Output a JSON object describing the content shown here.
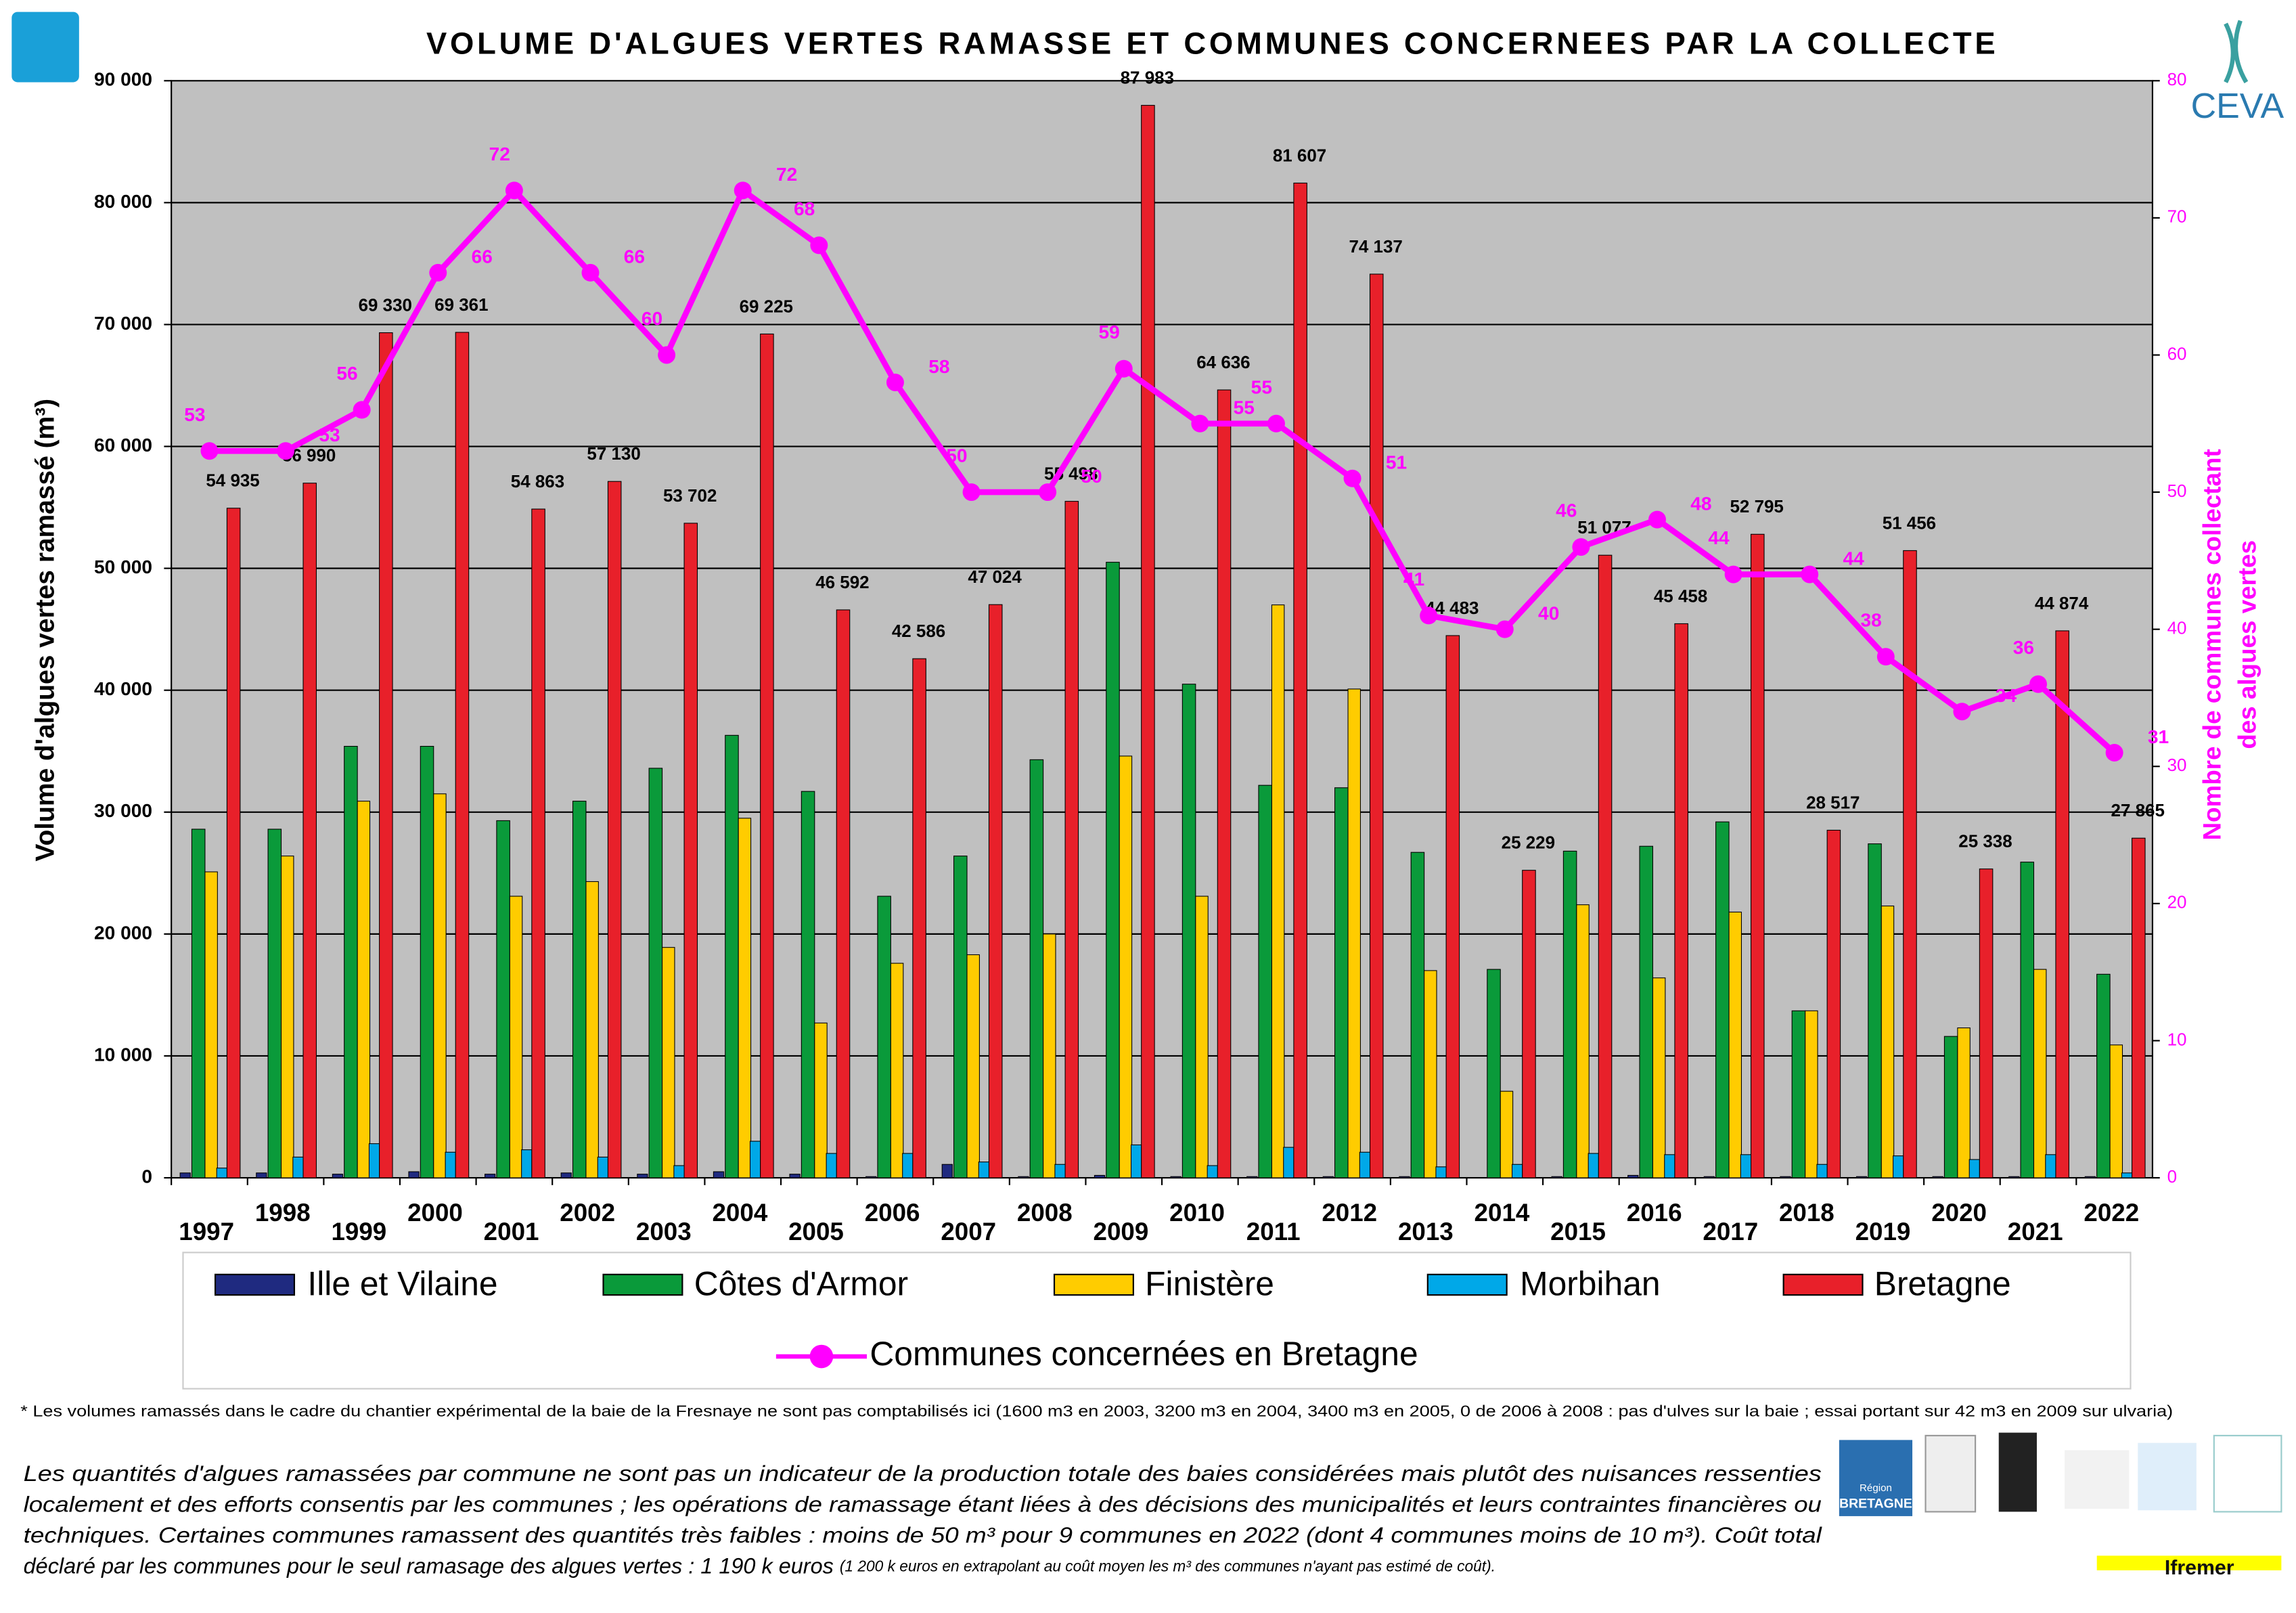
{
  "chart_data": {
    "type": "bar",
    "title": "VOLUME  D'ALGUES VERTES RAMASSE ET COMMUNES CONCERNEES PAR LA COLLECTE",
    "ylabel": "Volume d'algues vertes ramassé (m³)",
    "y2label": [
      "Nombre de communes collectant",
      "des algues vertes"
    ],
    "categories": [
      "1997",
      "1998",
      "1999",
      "2000",
      "2001",
      "2002",
      "2003",
      "2004",
      "2005",
      "2006",
      "2007",
      "2008",
      "2009",
      "2010",
      "2011",
      "2012",
      "2013",
      "2014",
      "2015",
      "2016",
      "2017",
      "2018",
      "2019",
      "2020",
      "2021",
      "2022"
    ],
    "ylim": [
      0,
      90000
    ],
    "yticks": [
      0,
      {
        "value": 10000,
        "label": "10 000"
      },
      {
        "value": 20000,
        "label": "20 000"
      },
      {
        "value": 30000,
        "label": "30 000"
      },
      {
        "value": 40000,
        "label": "40 000"
      },
      {
        "value": 50000,
        "label": "50 000"
      },
      {
        "value": 60000,
        "label": "60 000"
      },
      {
        "value": 70000,
        "label": "70 000"
      },
      {
        "value": 80000,
        "label": "80 000"
      },
      {
        "value": 90000,
        "label": "90 000"
      }
    ],
    "y2lim": [
      0,
      80
    ],
    "y2ticks": [
      0,
      10,
      20,
      30,
      40,
      50,
      60,
      70,
      80
    ],
    "grid": true,
    "series": [
      {
        "name": "Ille et Vilaine",
        "color": "#1f2a80",
        "values": [
          400,
          400,
          300,
          500,
          300,
          400,
          300,
          500,
          300,
          100,
          1100,
          100,
          200,
          100,
          100,
          100,
          100,
          0,
          100,
          200,
          100,
          100,
          100,
          100,
          100,
          100
        ]
      },
      {
        "name": "Côtes d'Armor",
        "color": "#0a9a3a",
        "values": [
          28600,
          28600,
          35400,
          35400,
          29300,
          30900,
          33600,
          36300,
          31700,
          23100,
          26400,
          34300,
          50500,
          40500,
          32200,
          32000,
          26700,
          17100,
          26800,
          27200,
          29200,
          13700,
          27400,
          11600,
          25900,
          16700
        ]
      },
      {
        "name": "Finistère",
        "color": "#ffcc00",
        "values": [
          25100,
          26400,
          30900,
          31500,
          23100,
          24300,
          18900,
          29500,
          12700,
          17600,
          18300,
          20000,
          34600,
          23100,
          47000,
          40100,
          17000,
          7100,
          22400,
          16400,
          21800,
          13700,
          22300,
          12300,
          17100,
          10900
        ]
      },
      {
        "name": "Morbihan",
        "color": "#00a8e8",
        "values": [
          800,
          1700,
          2800,
          2100,
          2300,
          1700,
          1000,
          3000,
          2000,
          2000,
          1300,
          1100,
          2700,
          1000,
          2500,
          2100,
          900,
          1100,
          2000,
          1900,
          1900,
          1100,
          1800,
          1500,
          1900,
          400
        ]
      },
      {
        "name": "Bretagne",
        "color": "#e8202a",
        "values": [
          54935,
          56990,
          69330,
          69361,
          54863,
          57130,
          53702,
          69225,
          46592,
          42586,
          47024,
          55498,
          87983,
          64636,
          81607,
          74137,
          44483,
          25229,
          51077,
          45458,
          52795,
          28517,
          51456,
          25338,
          44874,
          27865
        ],
        "value_labels": [
          "54 935",
          "56 990",
          "69 330",
          "69 361",
          "54 863",
          "57 130",
          "53 702",
          "69 225",
          "46 592",
          "42 586",
          "47 024",
          "55 498",
          "87 983",
          "64 636",
          "81 607",
          "74 137",
          "44 483",
          "25 229",
          "51 077",
          "45 458",
          "52 795",
          "28 517",
          "51 456",
          "25 338",
          "44 874",
          "27 865"
        ]
      },
      {
        "name": "Communes concernées en Bretagne",
        "type": "line",
        "axis": "y2",
        "color": "#ff00ff",
        "values": [
          53,
          53,
          56,
          66,
          72,
          66,
          60,
          72,
          68,
          58,
          50,
          50,
          59,
          55,
          55,
          51,
          41,
          40,
          46,
          48,
          44,
          44,
          38,
          34,
          36,
          31
        ]
      }
    ]
  },
  "notes": {
    "footnote": "* Les volumes ramassés dans le cadre du chantier expérimental de la baie de la Fresnaye ne sont pas comptabilisés ici (1600 m3 en 2003, 3200 m3 en 2004, 3400 m3 en 2005, 0 de 2006 à 2008 : pas d'ulves sur la baie ; essai portant sur 42 m3 en 2009 sur ulvaria)",
    "paragraph": [
      "Les quantités d'algues ramassées par commune ne sont pas un indicateur de la production totale des baies considérées mais plutôt des nuisances ressenties",
      "localement et des efforts consentis par les communes ; les opérations de ramassage étant liées à des décisions des municipalités et leurs contraintes financières ou",
      "techniques. Certaines communes ramassent des quantités très faibles : moins de 50 m³ pour 9 communes en 2022 (dont 4 communes moins de 10 m³). Coût total",
      "déclaré par les communes pour le seul ramasage des algues vertes : 1 190 k euros "
    ],
    "paragraph_small": "(1 200 k euros en extrapolant au coût moyen les m³ des communes n'ayant pas estimé de coût).",
    "logos": {
      "ceva": "CEVA",
      "ifremer": "Ifremer",
      "region": "Région",
      "bretagne": "BRETAGNE"
    }
  }
}
